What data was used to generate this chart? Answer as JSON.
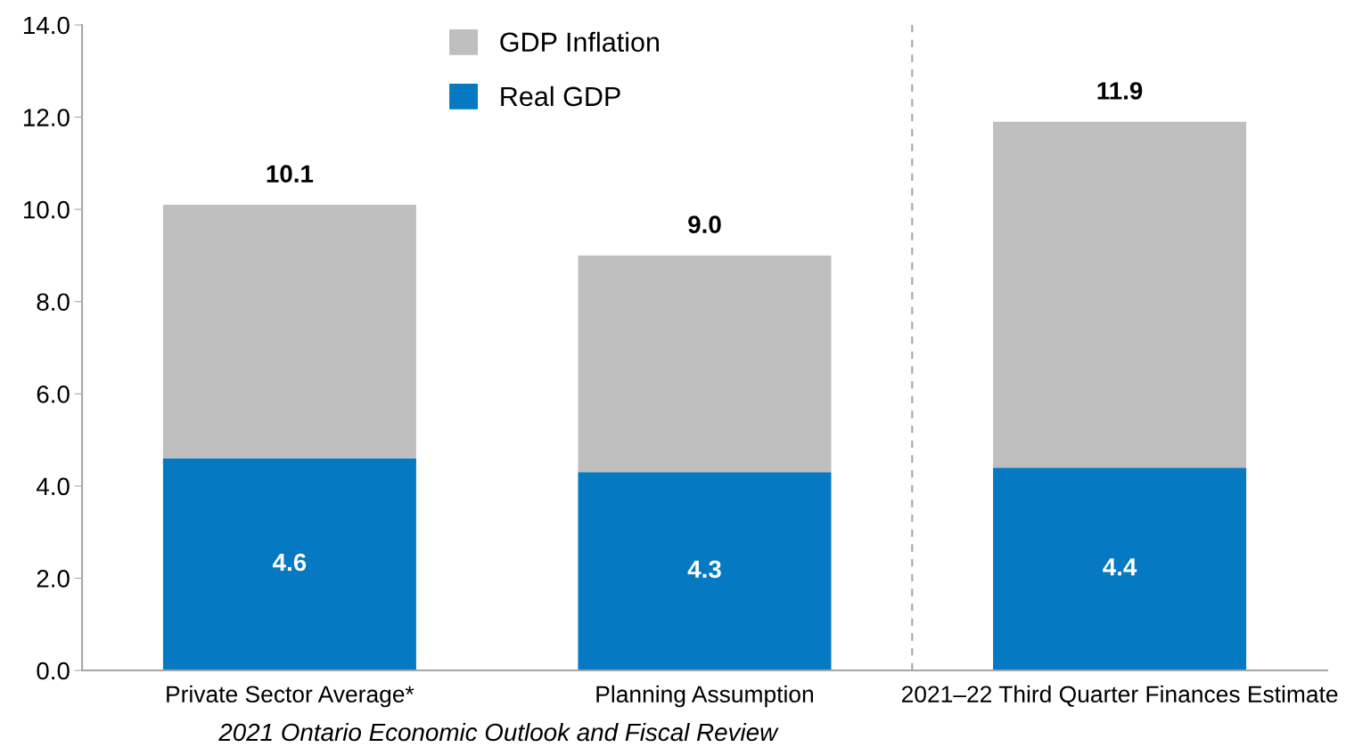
{
  "chart_data": {
    "type": "bar",
    "stacked": true,
    "categories": [
      "Private Sector Average*",
      "Planning Assumption",
      "2021–22 Third Quarter Finances Estimate"
    ],
    "series": [
      {
        "name": "Real GDP",
        "color": "#0579c1",
        "values": [
          4.6,
          4.3,
          4.4
        ],
        "value_labels": [
          "4.6",
          "4.3",
          "4.4"
        ]
      },
      {
        "name": "GDP Inflation",
        "color": "#bfbfbf",
        "values": [
          5.5,
          4.7,
          7.5
        ]
      }
    ],
    "totals": [
      "10.1",
      "9.0",
      "11.9"
    ],
    "ylim": [
      0,
      14
    ],
    "yticks": [
      {
        "value": 0,
        "label": "0.0"
      },
      {
        "value": 2,
        "label": "2.0"
      },
      {
        "value": 4,
        "label": "4.0"
      },
      {
        "value": 6,
        "label": "6.0"
      },
      {
        "value": 8,
        "label": "8.0"
      },
      {
        "value": 10,
        "label": "10.0"
      },
      {
        "value": 12,
        "label": "12.0"
      },
      {
        "value": 14,
        "label": "14.0"
      }
    ],
    "annotations": [
      "2021 Ontario Economic Outlook and Fiscal Review"
    ],
    "grid": false,
    "legend": "top"
  }
}
